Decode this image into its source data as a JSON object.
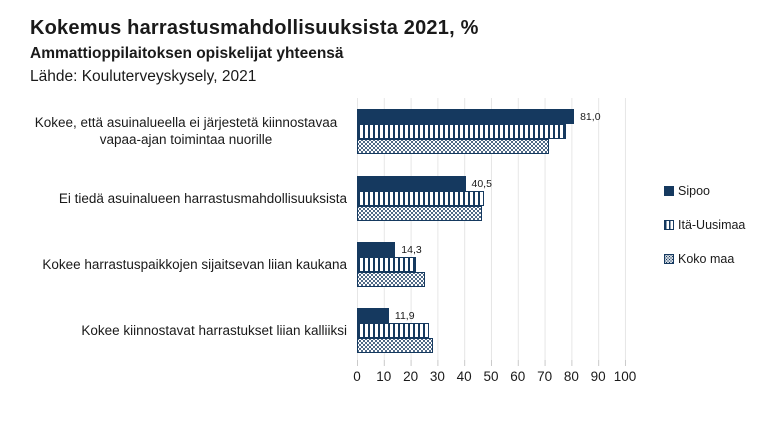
{
  "header": {
    "title": "Kokemus harrastusmahdollisuuksista 2021, %",
    "subtitle": "Ammattioppilaitoksen opiskelijat yhteensä",
    "source": "Lähde: Kouluterveyskysely, 2021"
  },
  "colors": {
    "bar_navy": "#15395f",
    "text": "#1a1a1a",
    "gridline": "#e6e6e6"
  },
  "chart_data": {
    "type": "bar",
    "orientation": "horizontal",
    "grid": true,
    "legend_position": "right",
    "xlim": [
      0,
      100
    ],
    "x_ticks": [
      0,
      10,
      20,
      30,
      40,
      50,
      60,
      70,
      80,
      90,
      100
    ],
    "categories": [
      "Kokee, että asuinalueella ei järjestetä kiinnostavaa vapaa-ajan toimintaa nuorille",
      "Ei tiedä asuinalueen harrastusmahdollisuuksista",
      "Kokee harrastuspaikkojen sijaitsevan liian kaukana",
      "Kokee kiinnostavat harrastukset liian kalliiksi"
    ],
    "series": [
      {
        "name": "Sipoo",
        "pattern": "solid",
        "values": [
          81.0,
          40.5,
          14.3,
          11.9
        ],
        "labels": [
          "81,0",
          "40,5",
          "14,3",
          "11,9"
        ]
      },
      {
        "name": "Itä-Uusimaa",
        "pattern": "vertical-stripes",
        "values": [
          78,
          47.5,
          22,
          27
        ]
      },
      {
        "name": "Koko maa",
        "pattern": "dots",
        "values": [
          71.5,
          46.5,
          25.5,
          28.5
        ]
      }
    ]
  }
}
